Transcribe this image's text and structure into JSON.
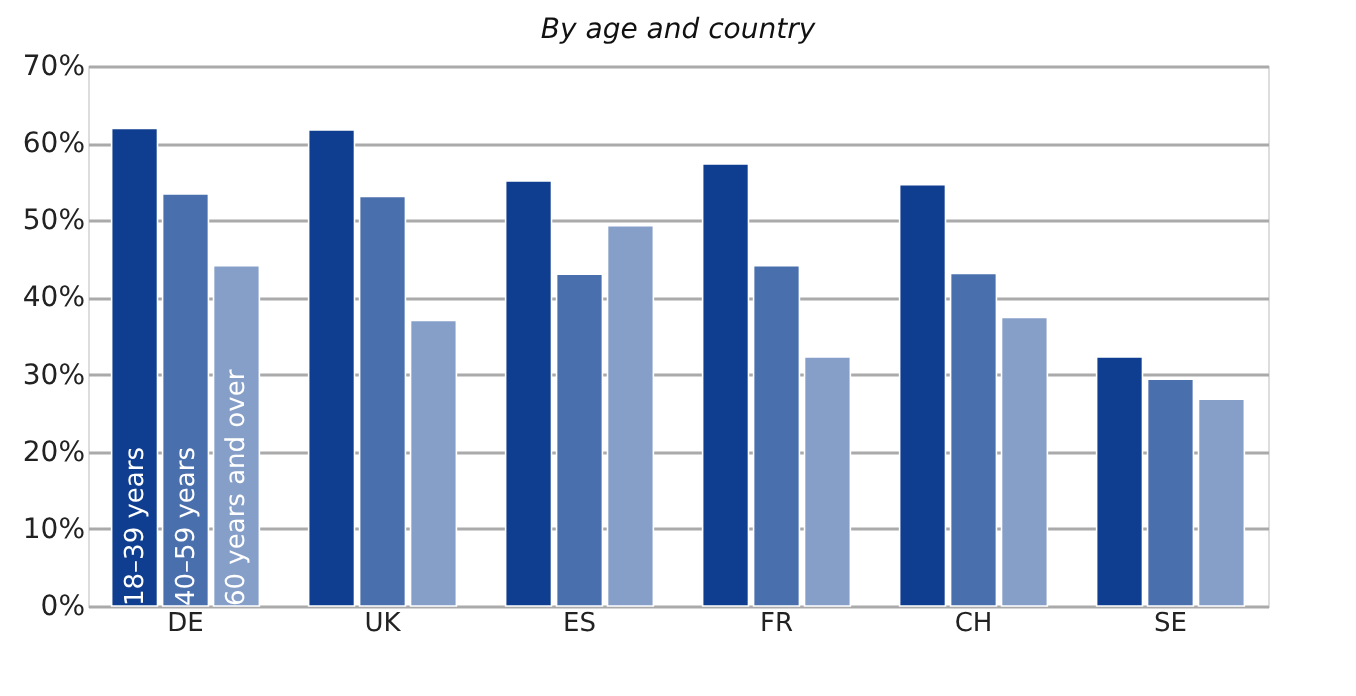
{
  "chart_data": {
    "type": "bar",
    "title": "By age and country",
    "categories": [
      "DE",
      "UK",
      "ES",
      "FR",
      "CH",
      "SE"
    ],
    "series": [
      {
        "name": "18–39 years",
        "color": "#0f3d8f",
        "values": [
          61.9,
          61.7,
          55.1,
          57.3,
          54.6,
          32.3
        ]
      },
      {
        "name": "40–59 years",
        "color": "#4a6fad",
        "values": [
          53.4,
          53.1,
          43.0,
          44.1,
          43.1,
          29.4
        ]
      },
      {
        "name": "60 years and over",
        "color": "#869fc8",
        "values": [
          44.1,
          37.0,
          49.3,
          32.3,
          37.4,
          26.8
        ]
      }
    ],
    "ylim": [
      0,
      70
    ],
    "yticks": [
      {
        "value": 0,
        "label": "0%"
      },
      {
        "value": 10,
        "label": "10%"
      },
      {
        "value": 20,
        "label": "20%"
      },
      {
        "value": 30,
        "label": "30%"
      },
      {
        "value": 40,
        "label": "40%"
      },
      {
        "value": 50,
        "label": "50%"
      },
      {
        "value": 60,
        "label": "60%"
      },
      {
        "value": 70,
        "label": "70%"
      }
    ],
    "grid": "y"
  }
}
